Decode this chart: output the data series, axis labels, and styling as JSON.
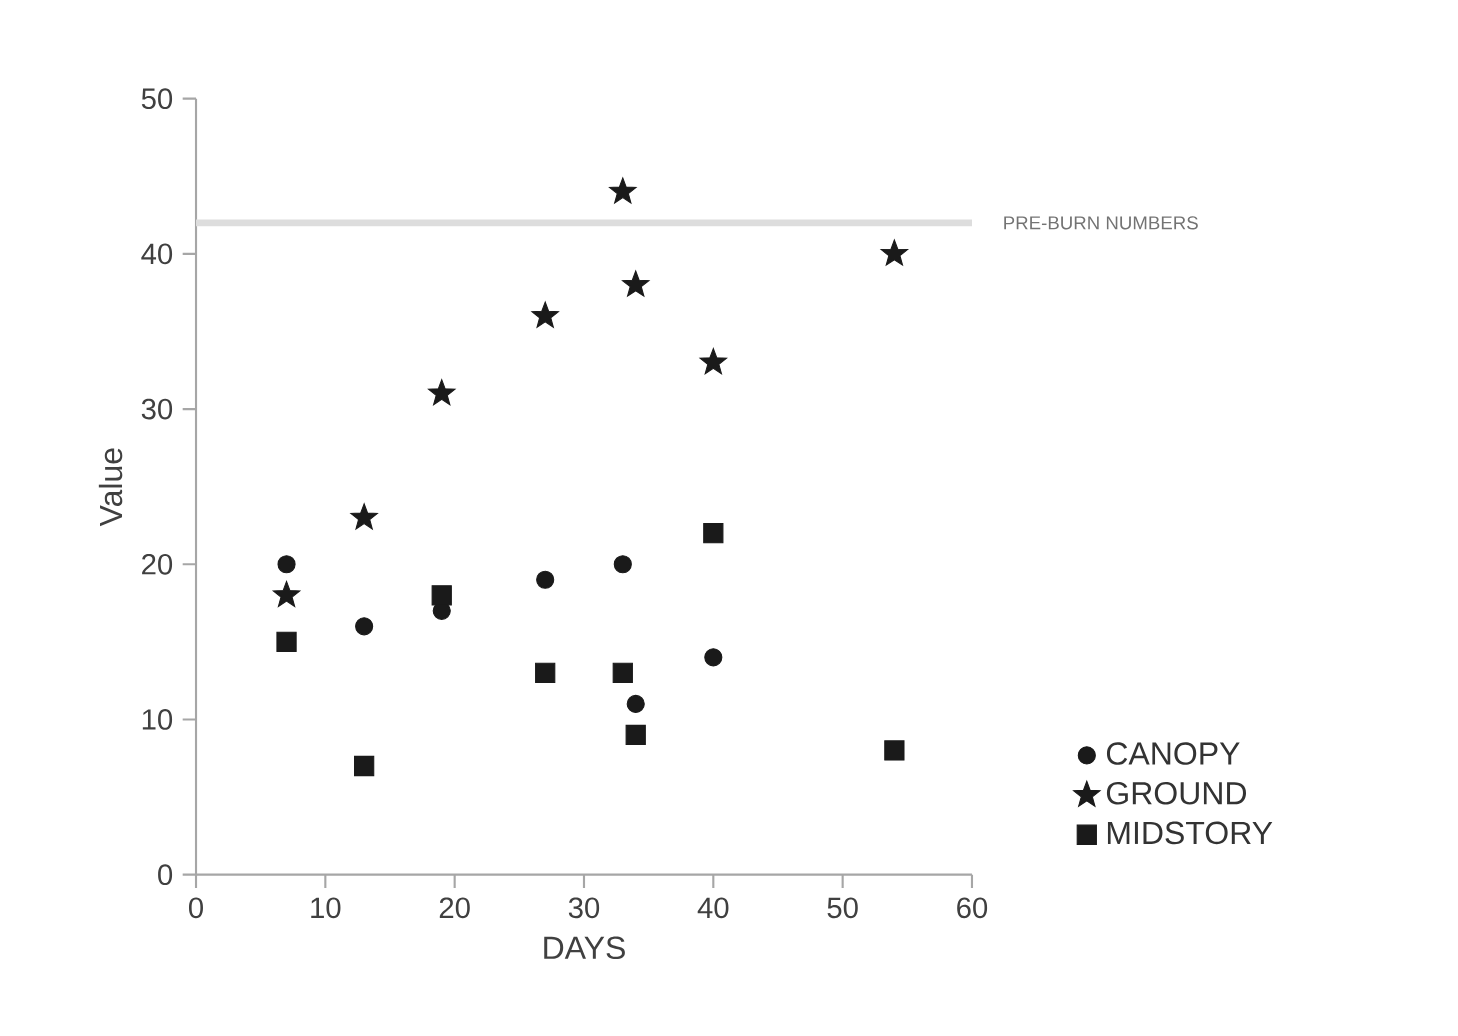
{
  "chart_data": {
    "type": "scatter",
    "xlabel": "DAYS",
    "ylabel": "Value",
    "xlim": [
      0,
      60
    ],
    "ylim": [
      0,
      50
    ],
    "xticks": [
      0,
      10,
      20,
      30,
      40,
      50,
      60
    ],
    "yticks": [
      0,
      10,
      20,
      30,
      40,
      50
    ],
    "legend": "bottom right",
    "ref_lines": [
      {
        "axis": "y",
        "value": 42,
        "label": "PRE-BURN NUMBERS",
        "color": "#dddddd"
      }
    ],
    "series": [
      {
        "name": "CANOPY",
        "color": "#1a1a1a",
        "marker": "circle",
        "x": [
          7,
          13,
          19,
          27,
          33,
          34,
          40
        ],
        "values": [
          20,
          16,
          17,
          19,
          20,
          11,
          14
        ]
      },
      {
        "name": "GROUND",
        "color": "#1a1a1a",
        "marker": "star",
        "x": [
          7,
          13,
          19,
          27,
          33,
          34,
          40,
          54
        ],
        "values": [
          18,
          23,
          31,
          36,
          44,
          38,
          33,
          40
        ]
      },
      {
        "name": "MIDSTORY",
        "color": "#1a1a1a",
        "marker": "square",
        "x": [
          7,
          13,
          19,
          27,
          33,
          34,
          40,
          54
        ],
        "values": [
          15,
          7,
          18,
          13,
          13,
          9,
          22,
          8
        ]
      }
    ]
  }
}
